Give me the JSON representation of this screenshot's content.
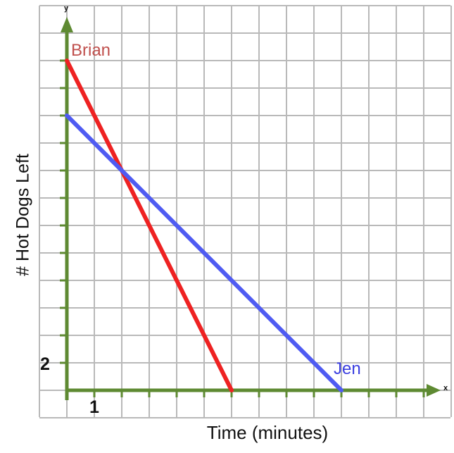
{
  "chart_data": {
    "type": "line",
    "xlabel": "Time (minutes)",
    "ylabel": "# Hot Dogs Left",
    "x_axis_letter": "x",
    "y_axis_letter": "y",
    "x_tick_label": "1",
    "y_tick_label": "2",
    "x_unit": 1,
    "y_unit": 2,
    "xlim": [
      0,
      14
    ],
    "ylim": [
      0,
      26
    ],
    "grid": true,
    "axis_color": "#5e8a32",
    "series": [
      {
        "name": "Brian",
        "color": "#ee2222",
        "label_color": "#c0504d",
        "x": [
          0,
          6
        ],
        "y": [
          24,
          0
        ]
      },
      {
        "name": "Jen",
        "color": "#4f5bf2",
        "label_color": "#3a3ee0",
        "x": [
          0,
          10
        ],
        "y": [
          20,
          0
        ]
      }
    ]
  }
}
